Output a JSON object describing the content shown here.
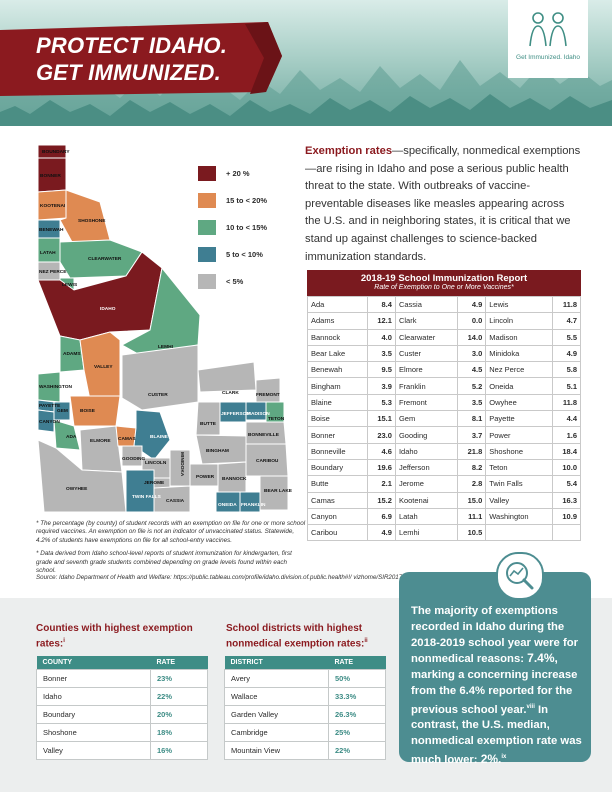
{
  "header": {
    "title_line1": "PROTECT IDAHO.",
    "title_line2": "GET IMMUNIZED.",
    "logo_text": "Get Immunized. Idaho",
    "colors": {
      "banner": "#8b1a1f",
      "teal": "#3e8d86"
    }
  },
  "map": {
    "legend": [
      {
        "label": "+ 20 %",
        "color": "#7a1a1f"
      },
      {
        "label": "15 to < 20%",
        "color": "#df8a52"
      },
      {
        "label": "10 to < 15%",
        "color": "#5fa882"
      },
      {
        "label": "5 to < 10%",
        "color": "#3f7e92"
      },
      {
        "label": "< 5%",
        "color": "#b6b6b6"
      }
    ],
    "counties": [
      "BOUNDARY",
      "BONNER",
      "KOOTENAI",
      "BENEWAH",
      "SHOSHONE",
      "LATAH",
      "CLEARWATER",
      "NEZ PERCE",
      "LEWIS",
      "IDAHO",
      "ADAMS",
      "VALLEY",
      "LEMHI",
      "WASHINGTON",
      "PAYETTE",
      "GEM",
      "BOISE",
      "CUSTER",
      "CLARK",
      "FREMONT",
      "JEFFERSON",
      "MADISON",
      "TETON",
      "BUTTE",
      "BONNEVILLE",
      "CANYON",
      "ADA",
      "ELMORE",
      "CAMAS",
      "BLAINE",
      "BINGHAM",
      "GOODING",
      "LINCOLN",
      "MINIDOKA",
      "POWER",
      "CARIBOU",
      "JEROME",
      "BANNOCK",
      "BEAR LAKE",
      "OWYHEE",
      "TWIN FALLS",
      "CASSIA",
      "ONEIDA",
      "FRANKLIN"
    ]
  },
  "intro": {
    "lead": "Exemption rates",
    "body": "—specifically, nonmedical exemptions—are rising in Idaho and pose a serious public health threat to the state. With outbreaks of vaccine-preventable diseases like measles appearing across the U.S. and in neighboring states, it is critical that we stand up against challenges to science-backed immunization standards."
  },
  "report": {
    "title": "2018-19 School Immunization Report",
    "subtitle": "Rate of Exemption to One or More Vaccines*",
    "columns": [
      [
        [
          "Ada",
          "8.4"
        ],
        [
          "Adams",
          "12.1"
        ],
        [
          "Bannock",
          "4.0"
        ],
        [
          "Bear Lake",
          "3.5"
        ],
        [
          "Benewah",
          "9.5"
        ],
        [
          "Bingham",
          "3.9"
        ],
        [
          "Blaine",
          "5.3"
        ],
        [
          "Boise",
          "15.1"
        ],
        [
          "Bonner",
          "23.0"
        ],
        [
          "Bonneville",
          "4.6"
        ],
        [
          "Boundary",
          "19.6"
        ],
        [
          "Butte",
          "2.1"
        ],
        [
          "Camas",
          "15.2"
        ],
        [
          "Canyon",
          "6.9"
        ],
        [
          "Caribou",
          "4.9"
        ]
      ],
      [
        [
          "Cassia",
          "4.9"
        ],
        [
          "Clark",
          "0.0"
        ],
        [
          "Clearwater",
          "14.0"
        ],
        [
          "Custer",
          "3.0"
        ],
        [
          "Elmore",
          "4.5"
        ],
        [
          "Franklin",
          "5.2"
        ],
        [
          "Fremont",
          "3.5"
        ],
        [
          "Gem",
          "8.1"
        ],
        [
          "Gooding",
          "3.7"
        ],
        [
          "Idaho",
          "21.8"
        ],
        [
          "Jefferson",
          "8.2"
        ],
        [
          "Jerome",
          "2.8"
        ],
        [
          "Kootenai",
          "15.0"
        ],
        [
          "Latah",
          "11.1"
        ],
        [
          "Lemhi",
          "10.5"
        ]
      ],
      [
        [
          "Lewis",
          "11.8"
        ],
        [
          "Lincoln",
          "4.7"
        ],
        [
          "Madison",
          "5.5"
        ],
        [
          "Minidoka",
          "4.9"
        ],
        [
          "Nez Perce",
          "5.8"
        ],
        [
          "Oneida",
          "5.1"
        ],
        [
          "Owyhee",
          "11.8"
        ],
        [
          "Payette",
          "4.4"
        ],
        [
          "Power",
          "1.6"
        ],
        [
          "Shoshone",
          "18.4"
        ],
        [
          "Teton",
          "10.0"
        ],
        [
          "Twin Falls",
          "5.4"
        ],
        [
          "Valley",
          "16.3"
        ],
        [
          "Washington",
          "10.9"
        ]
      ]
    ]
  },
  "notes": {
    "note1": "* The percentage (by county) of student records with an exemption on file for one or more school required vaccines. An exemption on file is not an indicator of unvaccinated status. Statewide, 4.2% of students have exemptions on file for all school-entry vaccines.",
    "note2": "* Data derived from Idaho school-level reports of student immunization for kindergarten, first grade and seventh grade students combined depending on grade levels found within each school.",
    "source": "Source:  Idaho Department of Health and Welfare: https://public.tableau.com/profile/idaho.division.of.public.health#!/ vizhome/SIR2017_2018and2018_2019/IdahoSchoolImmunizationReport"
  },
  "counties_table": {
    "title": "Counties with highest exemption rates:",
    "title_sup": "i",
    "headers": [
      "COUNTY",
      "RATE"
    ],
    "rows": [
      [
        "Bonner",
        "23%"
      ],
      [
        "Idaho",
        "22%"
      ],
      [
        "Boundary",
        "20%"
      ],
      [
        "Shoshone",
        "18%"
      ],
      [
        "Valley",
        "16%"
      ]
    ]
  },
  "districts_table": {
    "title": "School districts with highest nonmedical exemption rates:",
    "title_sup": "ii",
    "headers": [
      "DISTRICT",
      "RATE"
    ],
    "rows": [
      [
        "Avery",
        "50%"
      ],
      [
        "Wallace",
        "33.3%"
      ],
      [
        "Garden Valley",
        "26.3%"
      ],
      [
        "Cambridge",
        "25%"
      ],
      [
        "Mountain View",
        "22%"
      ]
    ]
  },
  "callout": {
    "t1": "The majority of exemptions recorded in Idaho during the 2018-2019 school year were for nonmedical reasons: ",
    "v1": "7.4%,",
    "t2": " marking a concerning increase from the 6.4% reported for the previous school year.",
    "s1": "viii",
    "t3": " In contrast, the U.S. median, nonmedical exemption rate was much lower: ",
    "v2": "2%.",
    "s2": "ix"
  }
}
